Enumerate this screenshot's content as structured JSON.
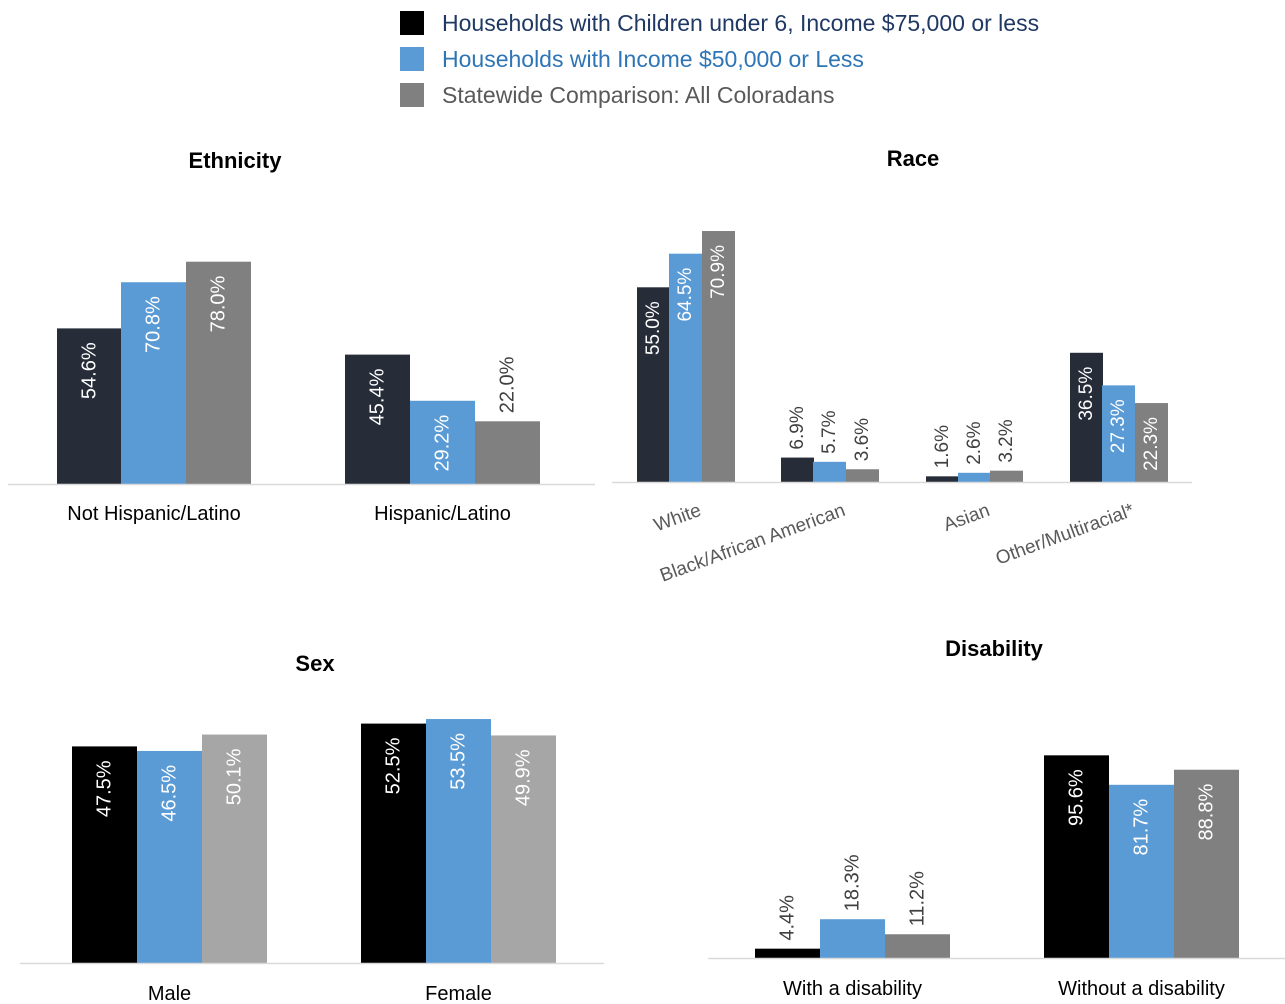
{
  "legend": [
    {
      "label": "Households with Children under 6, Income $75,000 or less",
      "text_color": "#1f3864"
    },
    {
      "label": "Households with Income $50,000 or Less",
      "text_color": "#2e75b6"
    },
    {
      "label": "Statewide Comparison: All Coloradans",
      "text_color": "#595959"
    }
  ],
  "colors": {
    "axis": "#d9d9d9",
    "category_label": "#000000",
    "race_category_label": "#595959",
    "outside_value_label": "#404040",
    "inside_value_label": "#ffffff"
  },
  "chart_data": [
    {
      "type": "bar",
      "title": "Ethnicity",
      "categories": [
        "Not Hispanic/Latino",
        "Hispanic/Latino"
      ],
      "ylim": [
        0,
        100
      ],
      "series": [
        {
          "values": [
            54.6,
            45.4
          ],
          "labels": [
            "54.6%",
            "45.4%"
          ],
          "color": "#262d39"
        },
        {
          "values": [
            70.8,
            29.2
          ],
          "labels": [
            "70.8%",
            "29.2%"
          ],
          "color": "#5b9bd5"
        },
        {
          "values": [
            78.0,
            22.0
          ],
          "labels": [
            "78.0%",
            "22.0%"
          ],
          "color": "#808080"
        }
      ]
    },
    {
      "type": "bar",
      "title": "Race",
      "categories": [
        "White",
        "Black/African American",
        "Asian",
        "Other/Multiracial*"
      ],
      "ylim": [
        0,
        100
      ],
      "series": [
        {
          "values": [
            55.0,
            6.9,
            1.6,
            36.5
          ],
          "labels": [
            "55.0%",
            "6.9%",
            "1.6%",
            "36.5%"
          ],
          "color": "#262d39"
        },
        {
          "values": [
            64.5,
            5.7,
            2.6,
            27.3
          ],
          "labels": [
            "64.5%",
            "5.7%",
            "2.6%",
            "27.3%"
          ],
          "color": "#5b9bd5"
        },
        {
          "values": [
            70.9,
            3.6,
            3.2,
            22.3
          ],
          "labels": [
            "70.9%",
            "3.6%",
            "3.2%",
            "22.3%"
          ],
          "color": "#808080"
        }
      ]
    },
    {
      "type": "bar",
      "title": "Sex",
      "categories": [
        "Male",
        "Female"
      ],
      "ylim": [
        0,
        100
      ],
      "series": [
        {
          "values": [
            47.5,
            52.5
          ],
          "labels": [
            "47.5%",
            "52.5%"
          ],
          "color": "#000000"
        },
        {
          "values": [
            46.5,
            53.5
          ],
          "labels": [
            "46.5%",
            "53.5%"
          ],
          "color": "#5b9bd5"
        },
        {
          "values": [
            50.1,
            49.9
          ],
          "labels": [
            "50.1%",
            "49.9%"
          ],
          "color": "#a6a6a6"
        }
      ]
    },
    {
      "type": "bar",
      "title": "Disability",
      "categories": [
        "With a disability",
        "Without a disability"
      ],
      "ylim": [
        0,
        100
      ],
      "series": [
        {
          "values": [
            4.4,
            95.6
          ],
          "labels": [
            "4.4%",
            "95.6%"
          ],
          "color": "#000000"
        },
        {
          "values": [
            18.3,
            81.7
          ],
          "labels": [
            "18.3%",
            "81.7%"
          ],
          "color": "#5b9bd5"
        },
        {
          "values": [
            11.2,
            88.8
          ],
          "labels": [
            "11.2%",
            "88.8%"
          ],
          "color": "#808080"
        }
      ]
    }
  ]
}
